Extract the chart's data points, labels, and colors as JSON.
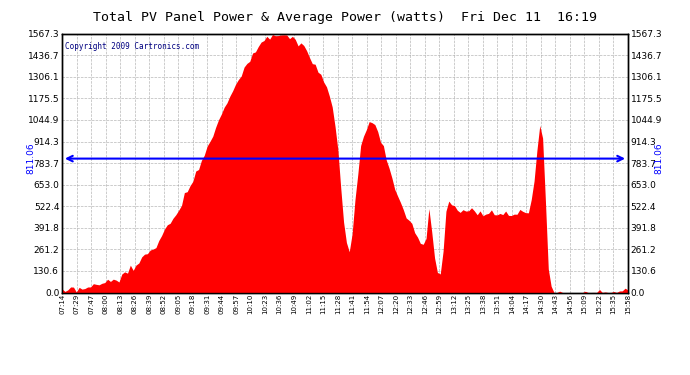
{
  "title": "Total PV Panel Power & Average Power (watts)  Fri Dec 11  16:19",
  "copyright": "Copyright 2009 Cartronics.com",
  "avg_label": "811.06",
  "avg_value": 811.06,
  "y_max": 1567.3,
  "y_min": 0.0,
  "yticks": [
    0.0,
    130.6,
    261.2,
    391.8,
    522.4,
    653.0,
    783.7,
    914.3,
    1044.9,
    1175.5,
    1306.1,
    1436.7,
    1567.3
  ],
  "x_labels": [
    "07:14",
    "07:29",
    "07:47",
    "08:00",
    "08:13",
    "08:26",
    "08:39",
    "08:52",
    "09:05",
    "09:18",
    "09:31",
    "09:44",
    "09:57",
    "10:10",
    "10:23",
    "10:36",
    "10:49",
    "11:02",
    "11:15",
    "11:28",
    "11:41",
    "11:54",
    "12:07",
    "12:20",
    "12:33",
    "12:46",
    "12:59",
    "13:12",
    "13:25",
    "13:38",
    "13:51",
    "14:04",
    "14:17",
    "14:30",
    "14:43",
    "14:56",
    "15:09",
    "15:22",
    "15:35",
    "15:58"
  ],
  "fill_color": "#FF0000",
  "line_color": "#0000FF",
  "bg_color": "#FFFFFF",
  "grid_color": "#999999",
  "title_color": "#000000",
  "border_color": "#000000",
  "copyright_color": "#000080"
}
